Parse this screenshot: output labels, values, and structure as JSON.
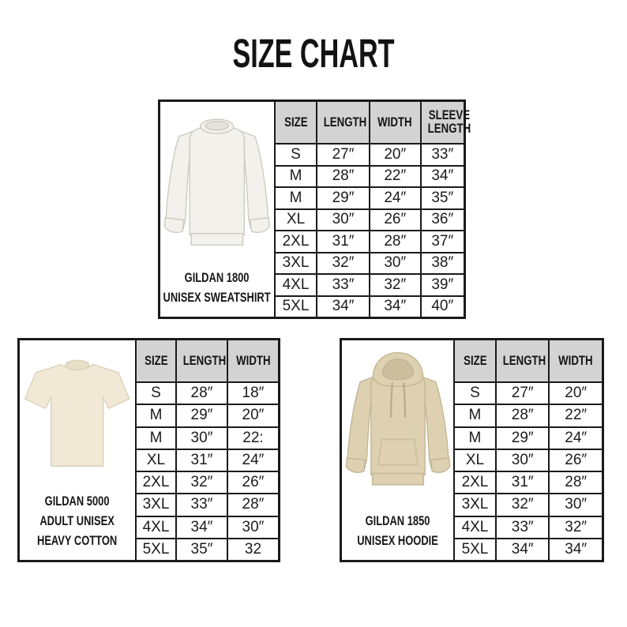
{
  "title": "SIZE CHART",
  "colors": {
    "background": "#ffffff",
    "border": "#1a1a1a",
    "header_bg": "#d3d3d3",
    "text": "#161616",
    "sweatshirt": "#f2f1ec",
    "tshirt": "#f1e9d6",
    "hoodie": "#ddd1b2"
  },
  "chart_data": [
    {
      "type": "table",
      "product_lines": [
        "GILDAN 1800",
        "UNISEX SWEATSHIRT"
      ],
      "garment_icon": "crewneck-sweatshirt-icon",
      "garment_color": "#f2f1ec",
      "columns": [
        "SIZE",
        "LENGTH",
        "WIDTH",
        "SLEEVE LENGTH"
      ],
      "rows": [
        [
          "S",
          "27″",
          "20″",
          "33″"
        ],
        [
          "M",
          "28″",
          "22″",
          "34″"
        ],
        [
          "M",
          "29″",
          "24″",
          "35″"
        ],
        [
          "XL",
          "30″",
          "26″",
          "36″"
        ],
        [
          "2XL",
          "31″",
          "28″",
          "37″"
        ],
        [
          "3XL",
          "32″",
          "30″",
          "38″"
        ],
        [
          "4XL",
          "33″",
          "32″",
          "39″"
        ],
        [
          "5XL",
          "34″",
          "34″",
          "40″"
        ]
      ]
    },
    {
      "type": "table",
      "product_lines": [
        "GILDAN 5000",
        "ADULT UNISEX",
        "HEAVY COTTON"
      ],
      "garment_icon": "tshirt-icon",
      "garment_color": "#f1e9d6",
      "columns": [
        "SIZE",
        "LENGTH",
        "WIDTH"
      ],
      "rows": [
        [
          "S",
          "28″",
          "18″"
        ],
        [
          "M",
          "29″",
          "20″"
        ],
        [
          "M",
          "30″",
          "22:"
        ],
        [
          "XL",
          "31″",
          "24″"
        ],
        [
          "2XL",
          "32″",
          "26″"
        ],
        [
          "3XL",
          "33″",
          "28″"
        ],
        [
          "4XL",
          "34″",
          "30″"
        ],
        [
          "5XL",
          "35″",
          "32"
        ]
      ]
    },
    {
      "type": "table",
      "product_lines": [
        "GILDAN 1850",
        "UNISEX HOODIE"
      ],
      "garment_icon": "hoodie-icon",
      "garment_color": "#ddd1b2",
      "columns": [
        "SIZE",
        "LENGTH",
        "WIDTH"
      ],
      "rows": [
        [
          "S",
          "27″",
          "20″"
        ],
        [
          "M",
          "28″",
          "22″"
        ],
        [
          "M",
          "29″",
          "24″"
        ],
        [
          "XL",
          "30″",
          "26″"
        ],
        [
          "2XL",
          "31″",
          "28″"
        ],
        [
          "3XL",
          "32″",
          "30″"
        ],
        [
          "4XL",
          "33″",
          "32″"
        ],
        [
          "5XL",
          "34″",
          "34″"
        ]
      ]
    }
  ]
}
